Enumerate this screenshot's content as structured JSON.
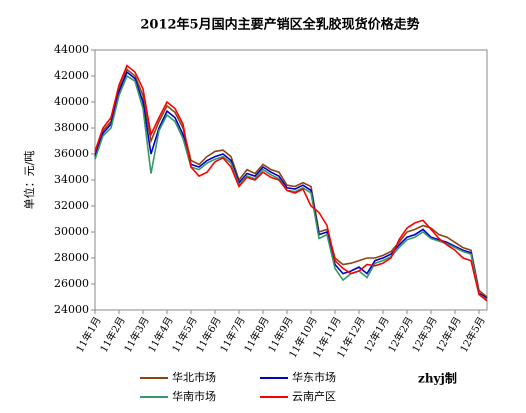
{
  "chart_data": {
    "type": "line",
    "title": "2012年5月国内主要产销区全乳胶现货价格走势",
    "y_label": "单位：元/吨",
    "annotation": "zhyj制",
    "categories": [
      "11年1月",
      null,
      null,
      "11年2月",
      null,
      null,
      "11年3月",
      null,
      null,
      "11年4月",
      null,
      null,
      "11年5月",
      null,
      null,
      "11年6月",
      null,
      null,
      "11年7月",
      null,
      null,
      "11年8月",
      null,
      null,
      "11年9月",
      null,
      null,
      "11年10月",
      null,
      null,
      "11年11月",
      null,
      null,
      "11年12月",
      null,
      null,
      "12年1月",
      null,
      null,
      "12年2月",
      null,
      null,
      "12年3月",
      null,
      null,
      "12年4月",
      null,
      null,
      "12年5月",
      null
    ],
    "series": [
      {
        "name": "华北市场",
        "color": "#8b4513",
        "values": [
          36000,
          37800,
          38500,
          41000,
          42500,
          42000,
          40500,
          37000,
          38500,
          39700,
          39200,
          38000,
          35500,
          35200,
          35800,
          36200,
          36300,
          35800,
          34000,
          34800,
          34500,
          35200,
          34800,
          34600,
          33600,
          33500,
          33800,
          33500,
          30000,
          30200,
          28000,
          27500,
          27600,
          27800,
          28000,
          28000,
          28200,
          28500,
          29200,
          30000,
          30200,
          30500,
          30300,
          29800,
          29600,
          29200,
          28800,
          28600,
          25500,
          25000
        ]
      },
      {
        "name": "华东市场",
        "color": "#0000cc",
        "values": [
          35800,
          37600,
          38300,
          40800,
          42300,
          41800,
          40000,
          36000,
          38000,
          39300,
          38800,
          37500,
          35200,
          35000,
          35500,
          35800,
          36000,
          35500,
          33800,
          34500,
          34300,
          35000,
          34600,
          34300,
          33400,
          33300,
          33600,
          33200,
          29800,
          30000,
          27500,
          26800,
          27000,
          27300,
          26800,
          27800,
          28000,
          28300,
          29000,
          29600,
          29800,
          30200,
          29600,
          29400,
          29200,
          28900,
          28600,
          28400,
          25300,
          24900
        ]
      },
      {
        "name": "华南市场",
        "color": "#339966",
        "values": [
          35600,
          37400,
          38000,
          40500,
          42000,
          41600,
          39500,
          34500,
          37800,
          39000,
          38500,
          37200,
          35000,
          34800,
          35300,
          35600,
          35800,
          35300,
          33600,
          34300,
          34100,
          34800,
          34400,
          34100,
          33200,
          33100,
          33400,
          33000,
          29500,
          29800,
          27200,
          26300,
          26800,
          27000,
          26500,
          27600,
          27800,
          28100,
          28800,
          29400,
          29600,
          30000,
          29500,
          29300,
          29100,
          28800,
          28500,
          28300,
          25200,
          24800
        ]
      },
      {
        "name": "云南产区",
        "color": "#ff0000",
        "values": [
          36200,
          38000,
          38800,
          41300,
          42800,
          42300,
          41000,
          37500,
          38800,
          40000,
          39500,
          38300,
          35000,
          34300,
          34600,
          35400,
          35700,
          35000,
          33500,
          34200,
          34000,
          34600,
          34200,
          34000,
          33200,
          33000,
          33300,
          32000,
          31500,
          30500,
          27800,
          27200,
          26800,
          27000,
          27500,
          27400,
          27600,
          28000,
          29400,
          30300,
          30700,
          30900,
          30200,
          29500,
          29000,
          28600,
          28000,
          27800,
          25200,
          24700
        ]
      }
    ],
    "ylim": [
      24000,
      44000
    ],
    "yticks": [
      24000,
      26000,
      28000,
      30000,
      32000,
      34000,
      36000,
      38000,
      40000,
      42000,
      44000
    ]
  }
}
